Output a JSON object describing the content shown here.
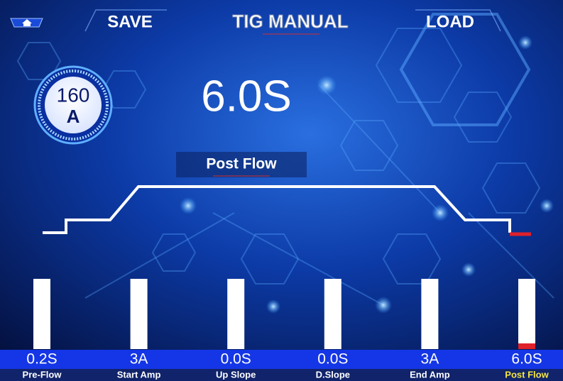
{
  "header": {
    "save": "SAVE",
    "title": "TIG MANUAL",
    "load": "LOAD"
  },
  "gauge": {
    "value": "160",
    "unit": "A"
  },
  "display": {
    "value": "6.0S",
    "label": "Post Flow"
  },
  "parameters": [
    {
      "value": "0.2S",
      "label": "Pre-Flow"
    },
    {
      "value": "3A",
      "label": "Start Amp"
    },
    {
      "value": "0.0S",
      "label": "Up Slope"
    },
    {
      "value": "0.0S",
      "label": "D.Slope"
    },
    {
      "value": "3A",
      "label": "End Amp"
    },
    {
      "value": "6.0S",
      "label": "Post Flow"
    }
  ]
}
